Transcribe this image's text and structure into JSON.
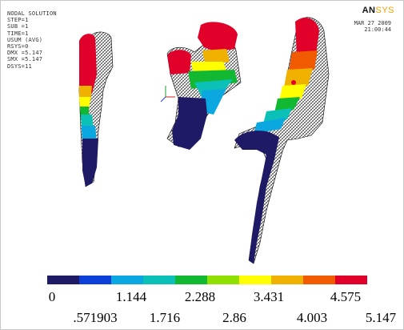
{
  "window": {
    "brand_main": "AN",
    "brand_accent": "SYS",
    "date": "MAR 27 2009",
    "time": "21:00:44"
  },
  "info_block": {
    "lines": [
      "NODAL SOLUTION",
      "STEP=1",
      "SUB =1",
      "TIME=1",
      "USUM      (AVG)",
      "RSYS=0",
      "DMX =5.147",
      "SMX =5.147",
      "DSYS=11"
    ]
  },
  "contour_legend": {
    "colors": [
      "#1e1a66",
      "#0c3fd8",
      "#0aa7e0",
      "#0bc0b6",
      "#12b832",
      "#8fe000",
      "#ffff00",
      "#f0b000",
      "#f05a00",
      "#e0002a"
    ],
    "top_labels": [
      "0",
      "1.144",
      "2.288",
      "3.431",
      "4.575"
    ],
    "bottom_labels": [
      ".571903",
      "1.716",
      "2.86",
      "4.003",
      "5.147"
    ]
  }
}
